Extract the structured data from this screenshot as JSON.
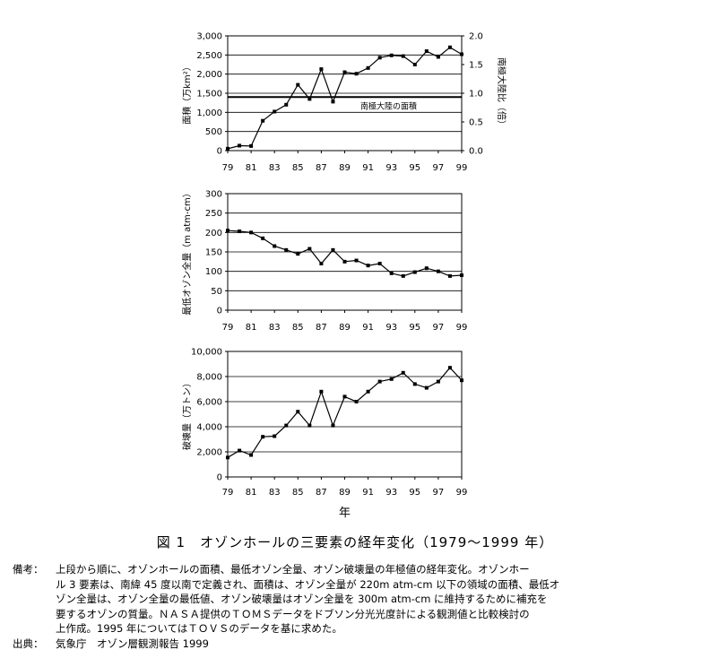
{
  "chart_data": [
    {
      "type": "line",
      "x": [
        "79",
        "80",
        "81",
        "82",
        "83",
        "84",
        "85",
        "86",
        "87",
        "88",
        "89",
        "90",
        "91",
        "92",
        "93",
        "94",
        "95",
        "96",
        "97",
        "98",
        "99"
      ],
      "x_tick_labels": [
        "79",
        "81",
        "83",
        "85",
        "87",
        "89",
        "91",
        "93",
        "95",
        "97",
        "99"
      ],
      "series": [
        {
          "values": [
            50,
            130,
            120,
            780,
            1020,
            1200,
            1720,
            1350,
            2130,
            1280,
            2050,
            2010,
            2160,
            2430,
            2490,
            2470,
            2250,
            2600,
            2450,
            2700,
            2520
          ]
        }
      ],
      "ylabel": "面積（万km²）",
      "ylim": [
        0,
        3000
      ],
      "y_ticks": [
        "0",
        "500",
        "1,000",
        "1,500",
        "2,000",
        "2,500",
        "3,000"
      ],
      "y2label": "南極大陸比（倍）",
      "y2lim": [
        0,
        2.0
      ],
      "y2_ticks": [
        "0.0",
        "0.5",
        "1.0",
        "1.5",
        "2.0"
      ],
      "reference_line": {
        "value": 1400,
        "label": "南極大陸の面積"
      },
      "grid": true
    },
    {
      "type": "line",
      "x": [
        "79",
        "80",
        "81",
        "82",
        "83",
        "84",
        "85",
        "86",
        "87",
        "88",
        "89",
        "90",
        "91",
        "92",
        "93",
        "94",
        "95",
        "96",
        "97",
        "98",
        "99"
      ],
      "x_tick_labels": [
        "79",
        "81",
        "83",
        "85",
        "87",
        "89",
        "91",
        "93",
        "95",
        "97",
        "99"
      ],
      "series": [
        {
          "values": [
            205,
            203,
            200,
            185,
            165,
            155,
            145,
            158,
            120,
            155,
            125,
            128,
            115,
            120,
            95,
            88,
            98,
            108,
            100,
            88,
            90
          ]
        }
      ],
      "ylabel": "最低オゾン全量（m atm-cm）",
      "ylim": [
        0,
        300
      ],
      "y_ticks": [
        "0",
        "50",
        "100",
        "150",
        "200",
        "250",
        "300"
      ],
      "grid": true
    },
    {
      "type": "line",
      "x": [
        "79",
        "80",
        "81",
        "82",
        "83",
        "84",
        "85",
        "86",
        "87",
        "88",
        "89",
        "90",
        "91",
        "92",
        "93",
        "94",
        "95",
        "96",
        "97",
        "98",
        "99"
      ],
      "x_tick_labels": [
        "79",
        "81",
        "83",
        "85",
        "87",
        "89",
        "91",
        "93",
        "95",
        "97",
        "99"
      ],
      "series": [
        {
          "values": [
            1550,
            2100,
            1750,
            3200,
            3250,
            4100,
            5200,
            4100,
            6800,
            4100,
            6400,
            6000,
            6800,
            7600,
            7800,
            8300,
            7400,
            7100,
            7600,
            8700,
            7700
          ]
        }
      ],
      "xlabel": "年",
      "ylabel": "破壊量（万トン）",
      "ylim": [
        0,
        10000
      ],
      "y_ticks": [
        "0",
        "2,000",
        "4,000",
        "6,000",
        "8,000",
        "10,000"
      ],
      "grid": true
    }
  ],
  "caption": "図 1　オゾンホールの三要素の経年変化（1979〜1999 年）",
  "notes": [
    {
      "label": "備考：",
      "lines": [
        "上段から順に、オゾンホールの面積、最低オゾン全量、オゾン破壊量の年極値の経年変化。オゾンホー",
        "ル 3 要素は、南緯 45 度以南で定義され、面積は、オゾン全量が 220m atm-cm 以下の領域の面積、最低オ",
        "ゾン全量は、オゾン全量の最低値、オゾン破壊量はオゾン全量を 300m atm-cm に維持するために補充を",
        "要するオゾンの質量。ＮＡＳＡ提供のＴＯＭＳデータをドブソン分光光度計による観測値と比較検討の",
        "上作成。1995 年についてはＴＯＶＳのデータを基に求めた。"
      ]
    },
    {
      "label": "出典：",
      "lines": [
        "気象庁　オゾン層観測報告 1999"
      ]
    }
  ]
}
